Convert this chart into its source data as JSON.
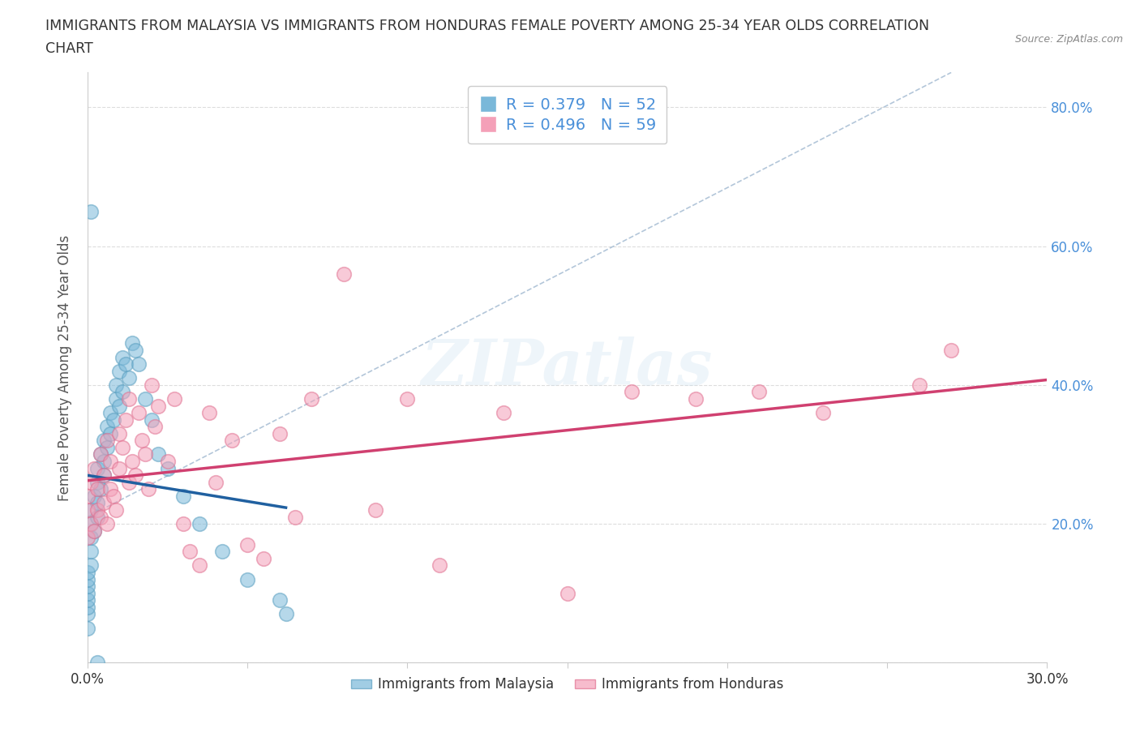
{
  "title_line1": "IMMIGRANTS FROM MALAYSIA VS IMMIGRANTS FROM HONDURAS FEMALE POVERTY AMONG 25-34 YEAR OLDS CORRELATION",
  "title_line2": "CHART",
  "source": "Source: ZipAtlas.com",
  "ylabel": "Female Poverty Among 25-34 Year Olds",
  "xlim": [
    0.0,
    0.3
  ],
  "ylim": [
    0.0,
    0.85
  ],
  "malaysia_color": "#7ab8d9",
  "malaysia_edge": "#5a9fc0",
  "honduras_color": "#f4a0b8",
  "honduras_edge": "#e07090",
  "malaysia_line_color": "#2060a0",
  "honduras_line_color": "#d04070",
  "malaysia_R": 0.379,
  "malaysia_N": 52,
  "honduras_R": 0.496,
  "honduras_N": 59,
  "watermark": "ZIPatlas",
  "background_color": "#ffffff",
  "grid_color": "#dddddd",
  "dashed_line_color": "#a0b8d0",
  "legend_text_color": "#4a90d9",
  "legend_label_color": "#333333",
  "right_tick_color": "#4a90d9",
  "malaysia_scatter_x": [
    0.0,
    0.0,
    0.0,
    0.0,
    0.0,
    0.0,
    0.0,
    0.0,
    0.001,
    0.001,
    0.001,
    0.001,
    0.001,
    0.002,
    0.002,
    0.003,
    0.003,
    0.003,
    0.003,
    0.004,
    0.004,
    0.005,
    0.005,
    0.005,
    0.006,
    0.006,
    0.007,
    0.007,
    0.008,
    0.009,
    0.009,
    0.01,
    0.01,
    0.011,
    0.011,
    0.012,
    0.013,
    0.014,
    0.015,
    0.016,
    0.018,
    0.02,
    0.022,
    0.025,
    0.03,
    0.035,
    0.042,
    0.05,
    0.06,
    0.062,
    0.001,
    0.003
  ],
  "malaysia_scatter_y": [
    0.05,
    0.07,
    0.08,
    0.09,
    0.1,
    0.11,
    0.12,
    0.13,
    0.14,
    0.16,
    0.18,
    0.2,
    0.22,
    0.19,
    0.24,
    0.21,
    0.23,
    0.26,
    0.28,
    0.25,
    0.3,
    0.27,
    0.29,
    0.32,
    0.31,
    0.34,
    0.33,
    0.36,
    0.35,
    0.38,
    0.4,
    0.37,
    0.42,
    0.39,
    0.44,
    0.43,
    0.41,
    0.46,
    0.45,
    0.43,
    0.38,
    0.35,
    0.3,
    0.28,
    0.24,
    0.2,
    0.16,
    0.12,
    0.09,
    0.07,
    0.65,
    0.0
  ],
  "honduras_scatter_x": [
    0.0,
    0.0,
    0.0,
    0.001,
    0.001,
    0.002,
    0.002,
    0.003,
    0.003,
    0.004,
    0.004,
    0.005,
    0.005,
    0.006,
    0.006,
    0.007,
    0.007,
    0.008,
    0.009,
    0.01,
    0.01,
    0.011,
    0.012,
    0.013,
    0.013,
    0.014,
    0.015,
    0.016,
    0.017,
    0.018,
    0.019,
    0.02,
    0.021,
    0.022,
    0.025,
    0.027,
    0.03,
    0.032,
    0.035,
    0.038,
    0.04,
    0.045,
    0.05,
    0.055,
    0.06,
    0.065,
    0.07,
    0.08,
    0.09,
    0.1,
    0.11,
    0.13,
    0.15,
    0.17,
    0.19,
    0.21,
    0.23,
    0.26,
    0.27
  ],
  "honduras_scatter_y": [
    0.22,
    0.24,
    0.18,
    0.2,
    0.26,
    0.19,
    0.28,
    0.22,
    0.25,
    0.21,
    0.3,
    0.23,
    0.27,
    0.2,
    0.32,
    0.25,
    0.29,
    0.24,
    0.22,
    0.28,
    0.33,
    0.31,
    0.35,
    0.26,
    0.38,
    0.29,
    0.27,
    0.36,
    0.32,
    0.3,
    0.25,
    0.4,
    0.34,
    0.37,
    0.29,
    0.38,
    0.2,
    0.16,
    0.14,
    0.36,
    0.26,
    0.32,
    0.17,
    0.15,
    0.33,
    0.21,
    0.38,
    0.56,
    0.22,
    0.38,
    0.14,
    0.36,
    0.1,
    0.39,
    0.38,
    0.39,
    0.36,
    0.4,
    0.45
  ]
}
